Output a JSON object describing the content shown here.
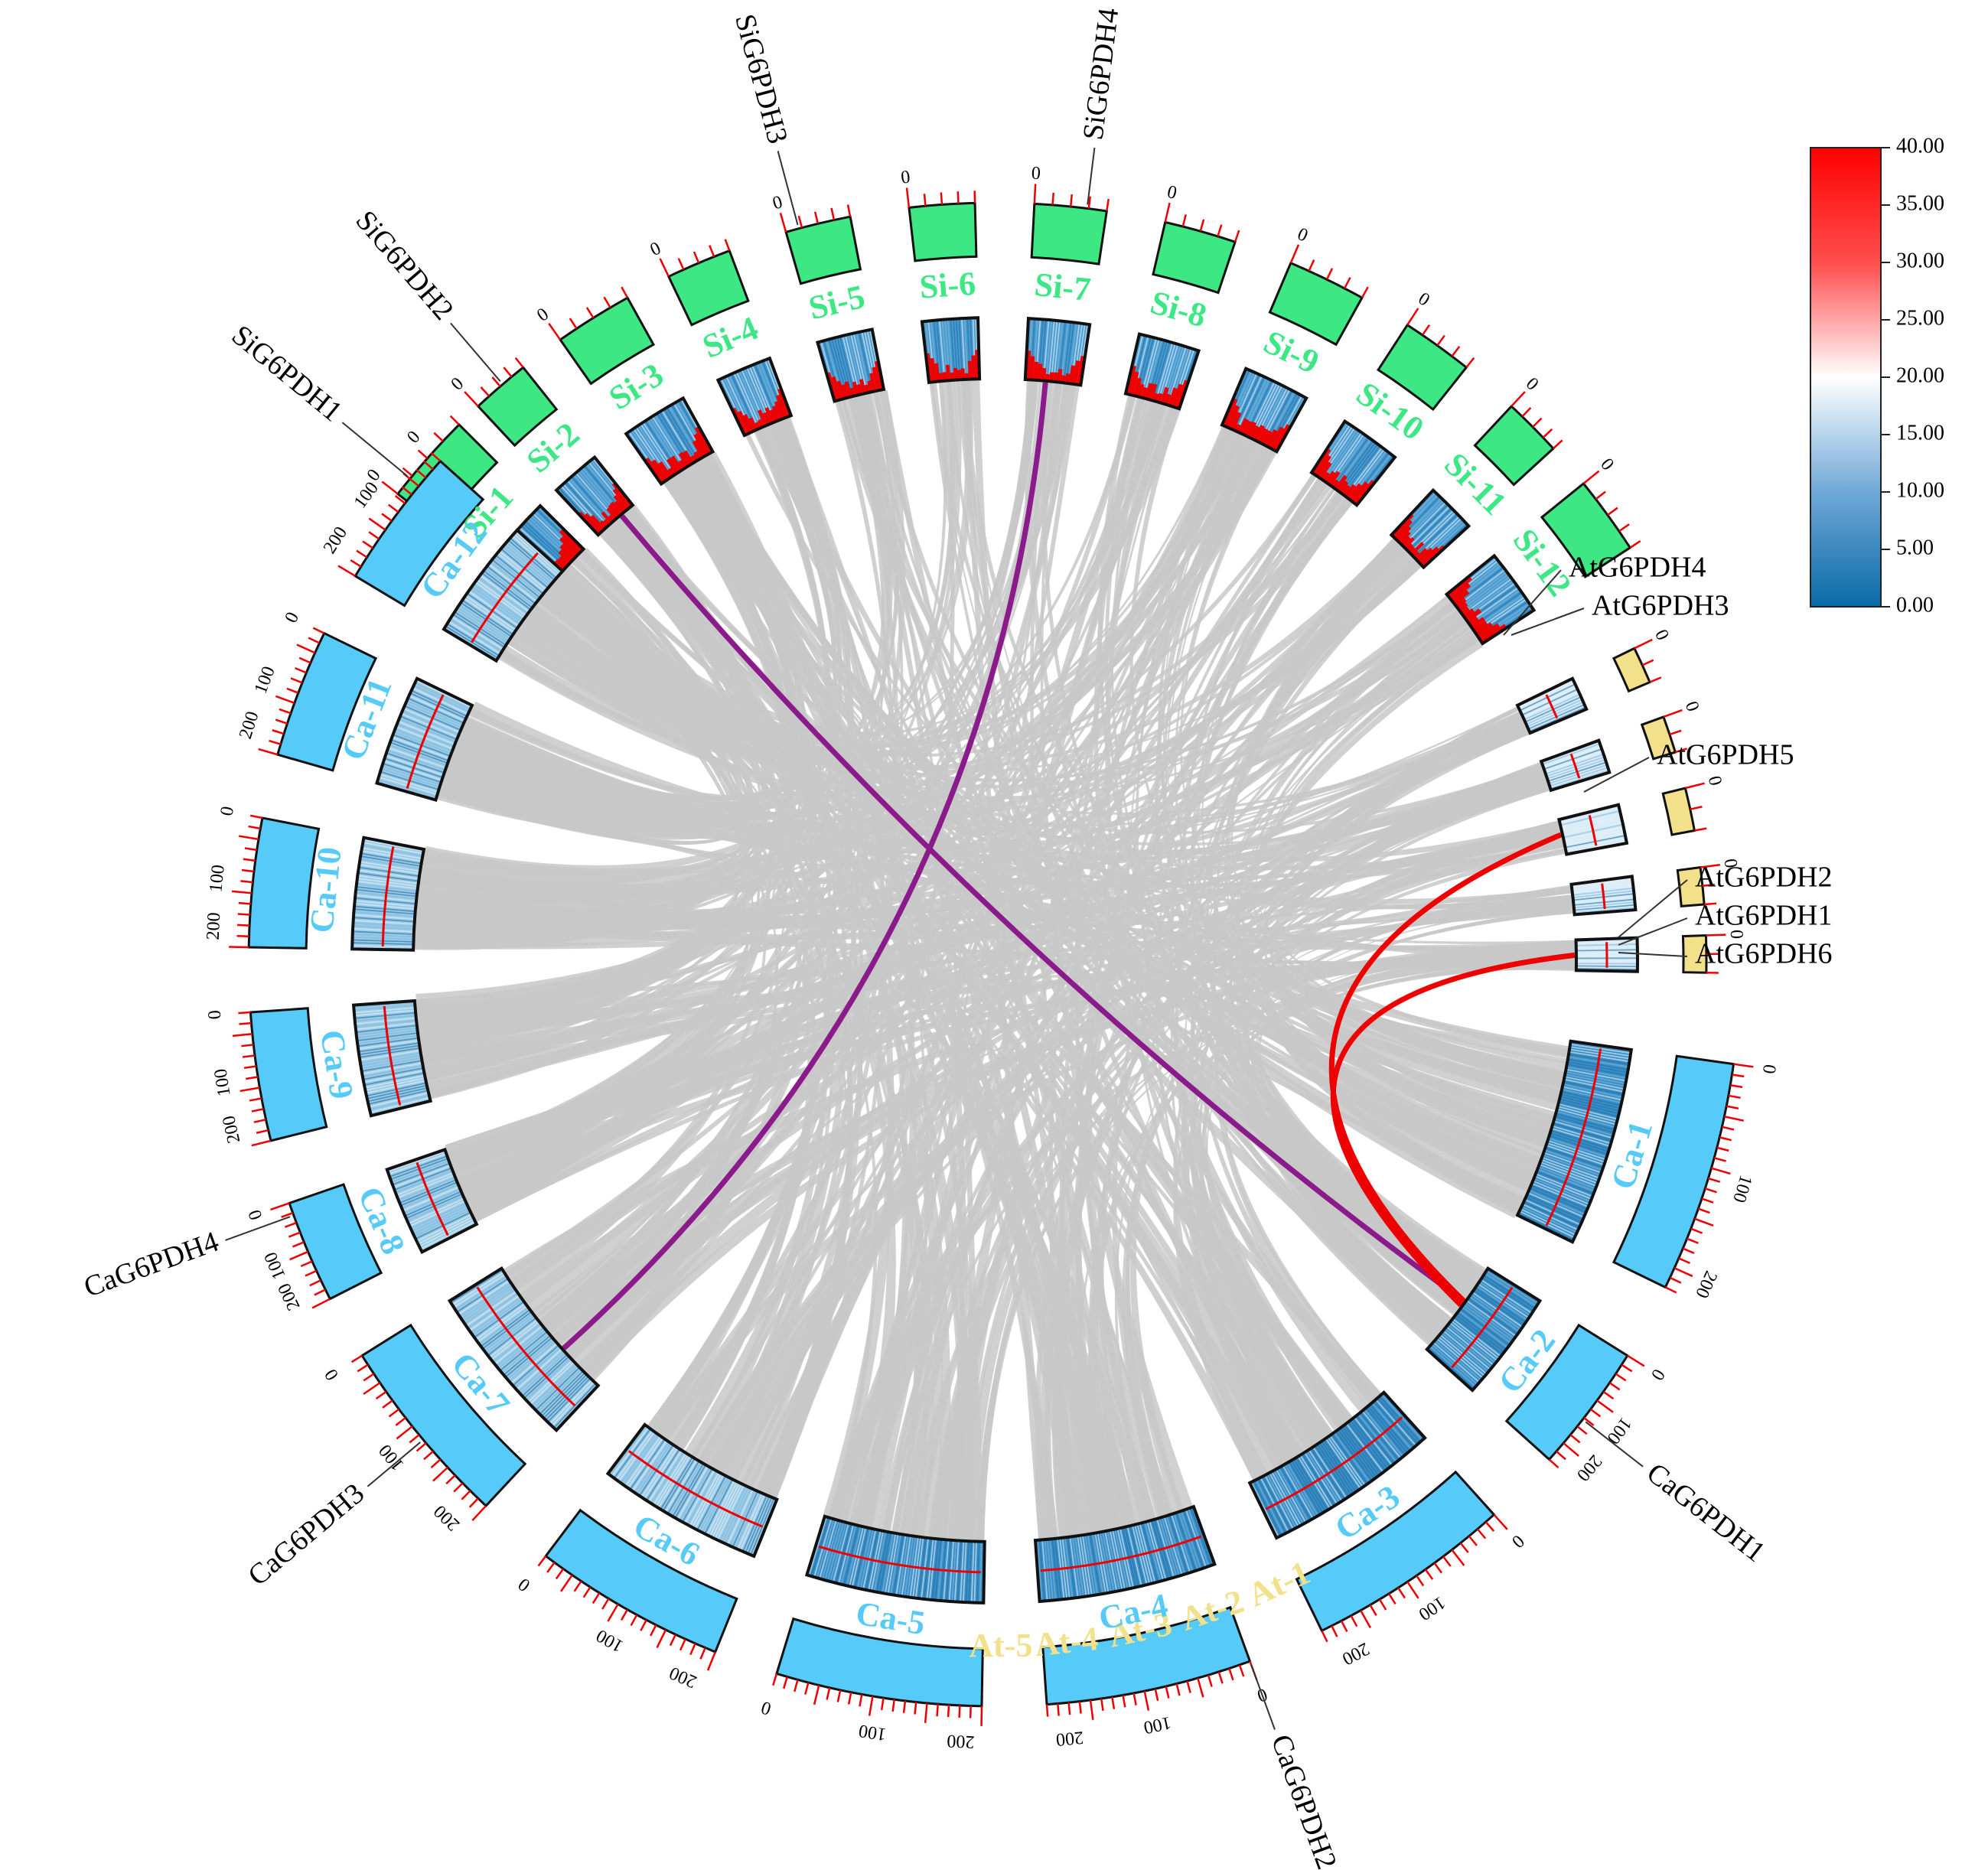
{
  "figure": {
    "type": "circos",
    "description_text": ""
  },
  "colors": {
    "si_chrom": "#3de884",
    "ca_chrom": "#56cbf9",
    "at_chrom": "#f2e08a",
    "si_label": "#3de884",
    "ca_label": "#56cbf9",
    "at_label": "#f2e08a",
    "synteny": "#c8c8c8",
    "highlight_si": "#8b1a8b",
    "highlight_at": "#ee0000",
    "density_red": "#ee0000",
    "density_blue_dark": "#1f78b4",
    "density_blue_light": "#dcecf6"
  },
  "chromosomes": {
    "si": [
      {
        "label": "Si-1"
      },
      {
        "label": "Si-2"
      },
      {
        "label": "Si-3"
      },
      {
        "label": "Si-4"
      },
      {
        "label": "Si-5"
      },
      {
        "label": "Si-6"
      },
      {
        "label": "Si-7"
      },
      {
        "label": "Si-8"
      },
      {
        "label": "Si-9"
      },
      {
        "label": "Si-10"
      },
      {
        "label": "Si-11"
      },
      {
        "label": "Si-12"
      }
    ],
    "at": [
      {
        "label": "At-1"
      },
      {
        "label": "At-2"
      },
      {
        "label": "At-3"
      },
      {
        "label": "At-4"
      },
      {
        "label": "At-5"
      }
    ],
    "ca": [
      {
        "label": "Ca-1"
      },
      {
        "label": "Ca-2"
      },
      {
        "label": "Ca-3"
      },
      {
        "label": "Ca-4"
      },
      {
        "label": "Ca-5"
      },
      {
        "label": "Ca-6"
      },
      {
        "label": "Ca-7"
      },
      {
        "label": "Ca-8"
      },
      {
        "label": "Ca-9"
      },
      {
        "label": "Ca-10"
      },
      {
        "label": "Ca-11"
      },
      {
        "label": "Ca-12"
      }
    ]
  },
  "scale_ticks": {
    "zero": "0",
    "hundred": "100",
    "two_hundred": "200"
  },
  "genes": {
    "si": [
      "SiG6PDH1",
      "SiG6PDH2",
      "SiG6PDH3",
      "SiG6PDH4"
    ],
    "at": [
      "AtG6PDH4",
      "AtG6PDH3",
      "AtG6PDH5",
      "AtG6PDH2",
      "AtG6PDH1",
      "AtG6PDH6"
    ],
    "ca": [
      "CaG6PDH1",
      "CaG6PDH2",
      "CaG6PDH3",
      "CaG6PDH4"
    ]
  },
  "legend": {
    "max": 40,
    "min": 0,
    "ticks": [
      "40.00",
      "35.00",
      "30.00",
      "25.00",
      "20.00",
      "15.00",
      "10.00",
      "5.00",
      "0.00"
    ]
  }
}
